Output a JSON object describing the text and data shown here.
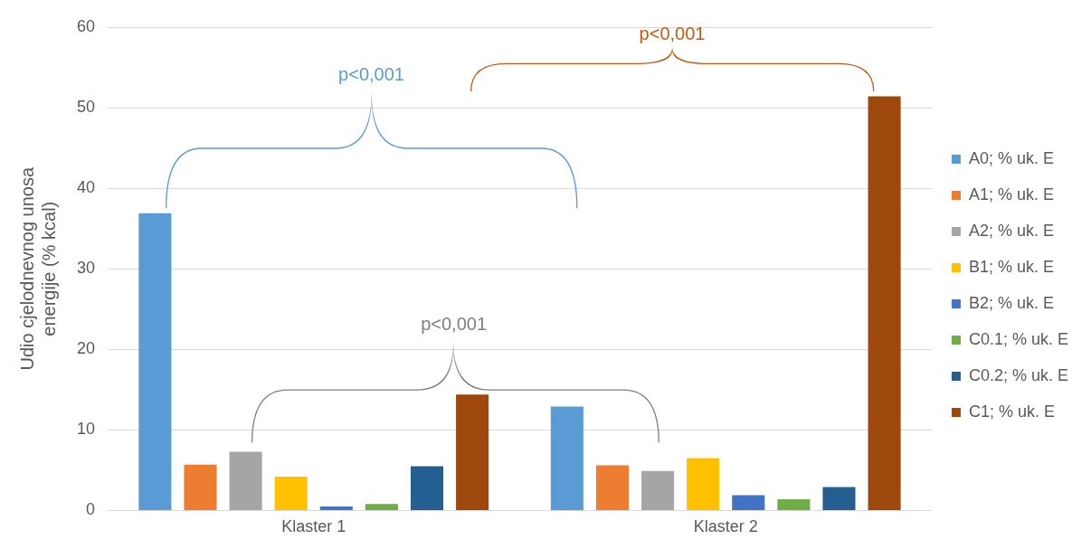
{
  "chart_data": {
    "type": "bar",
    "ylabel": "Udio cjelodnevnog unosa energije (% kcal)",
    "categories": [
      "Klaster 1",
      "Klaster 2"
    ],
    "series": [
      {
        "name": "A0; % uk. E",
        "color": "#5b9bd5",
        "values": [
          36.9,
          12.9
        ]
      },
      {
        "name": "A1; % uk. E",
        "color": "#ed7d31",
        "values": [
          5.7,
          5.6
        ]
      },
      {
        "name": "A2; % uk. E",
        "color": "#a5a5a5",
        "values": [
          7.3,
          4.9
        ]
      },
      {
        "name": "B1; % uk. E",
        "color": "#ffc000",
        "values": [
          4.2,
          6.5
        ]
      },
      {
        "name": "B2; % uk. E",
        "color": "#4472c4",
        "values": [
          0.5,
          1.9
        ]
      },
      {
        "name": "C0.1; % uk. E",
        "color": "#70ad47",
        "values": [
          0.8,
          1.4
        ]
      },
      {
        "name": "C0.2; % uk. E",
        "color": "#255e91",
        "values": [
          5.5,
          2.9
        ]
      },
      {
        "name": "C1; % uk. E",
        "color": "#9e480e",
        "values": [
          14.4,
          51.4
        ]
      }
    ],
    "ylim": [
      0,
      60
    ],
    "yticks": [
      0,
      10,
      20,
      30,
      40,
      50,
      60
    ],
    "grid": "y",
    "legend": "right",
    "annotations": [
      "p<0,001",
      "p<0,001",
      "p<0,001"
    ]
  }
}
